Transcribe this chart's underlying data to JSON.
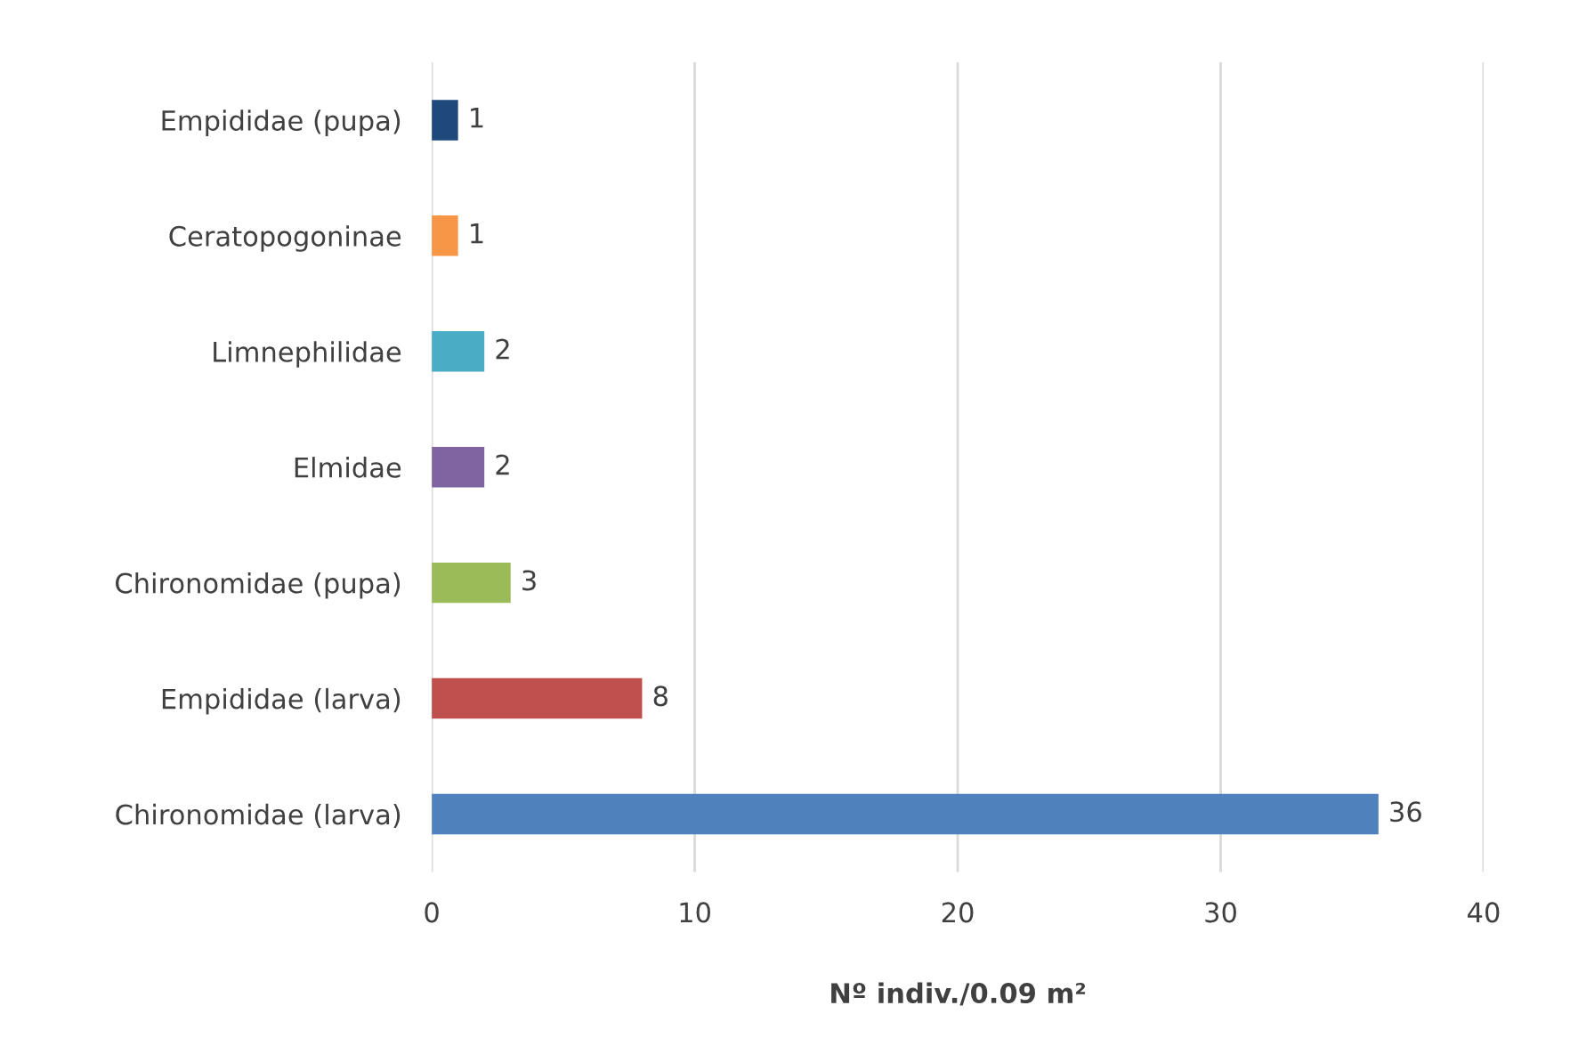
{
  "chart_data": {
    "type": "bar",
    "orientation": "horizontal",
    "xlabel": "Nº indiv./0.09 m²",
    "categories": [
      "Empididae (pupa)",
      "Ceratopogoninae",
      "Limnephilidae",
      "Elmidae",
      "Chironomidae (pupa)",
      "Empididae (larva)",
      "Chironomidae (larva)"
    ],
    "values": [
      1,
      1,
      2,
      2,
      3,
      8,
      36
    ],
    "colors": [
      "#1f497d",
      "#f79646",
      "#4bacc6",
      "#8064a2",
      "#9bbb59",
      "#c0504d",
      "#4f81bd"
    ],
    "xlim": [
      0,
      40
    ],
    "xticks": [
      0,
      10,
      20,
      30,
      40
    ],
    "grid": "x",
    "data_labels": true
  }
}
